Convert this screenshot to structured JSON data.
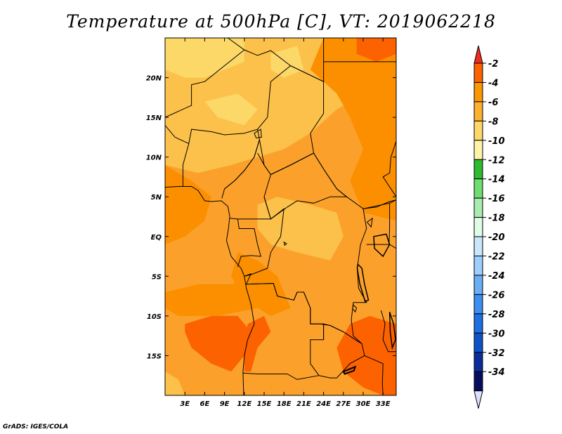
{
  "chart_data": {
    "type": "heatmap",
    "title": "Temperature at 500hPa [C], VT: 2019062218",
    "variable": "Temperature at 500hPa",
    "units": "C",
    "valid_time": "2019062218",
    "xlabel": "",
    "ylabel": "",
    "x_range": [
      0,
      35
    ],
    "y_range": [
      -20,
      25
    ],
    "x_tick_values": [
      3,
      6,
      9,
      12,
      15,
      18,
      21,
      24,
      27,
      30,
      33
    ],
    "x_tick_labels": [
      "3E",
      "6E",
      "9E",
      "12E",
      "15E",
      "18E",
      "21E",
      "24E",
      "27E",
      "30E",
      "33E"
    ],
    "y_tick_values": [
      20,
      15,
      10,
      5,
      0,
      -5,
      -10,
      -15
    ],
    "y_tick_labels": [
      "20N",
      "15N",
      "10N",
      "5N",
      "EQ",
      "5S",
      "10S",
      "15S"
    ],
    "colorbar": {
      "labels": [
        "-2",
        "-4",
        "-6",
        "-8",
        "-10",
        "-12",
        "-14",
        "-16",
        "-18",
        "-20",
        "-22",
        "-24",
        "-26",
        "-28",
        "-30",
        "-32",
        "-34"
      ],
      "colors": [
        "#ee2c1f",
        "#fc6200",
        "#fb9700",
        "#fbb12f",
        "#fcd869",
        "#fff3a8",
        "#2fba2f",
        "#6fdd6f",
        "#a9ecb0",
        "#e1fbe6",
        "#c8e7fb",
        "#9ccffb",
        "#6aaef4",
        "#3c8ef0",
        "#1d6fe2",
        "#0c52c8",
        "#0b2c9c",
        "#060d5d",
        "#dce0fc"
      ]
    },
    "background_level": "-6"
  },
  "footer": "GrADS: IGES/COLA",
  "colors": {
    "background": "#ffffff",
    "map_base": "#fba12b",
    "warm_patch": "#fb8f00",
    "hot_patch": "#fc6200",
    "cool_patch": "#fbc14a",
    "coolest_patch": "#fcd869",
    "border": "#000000"
  }
}
